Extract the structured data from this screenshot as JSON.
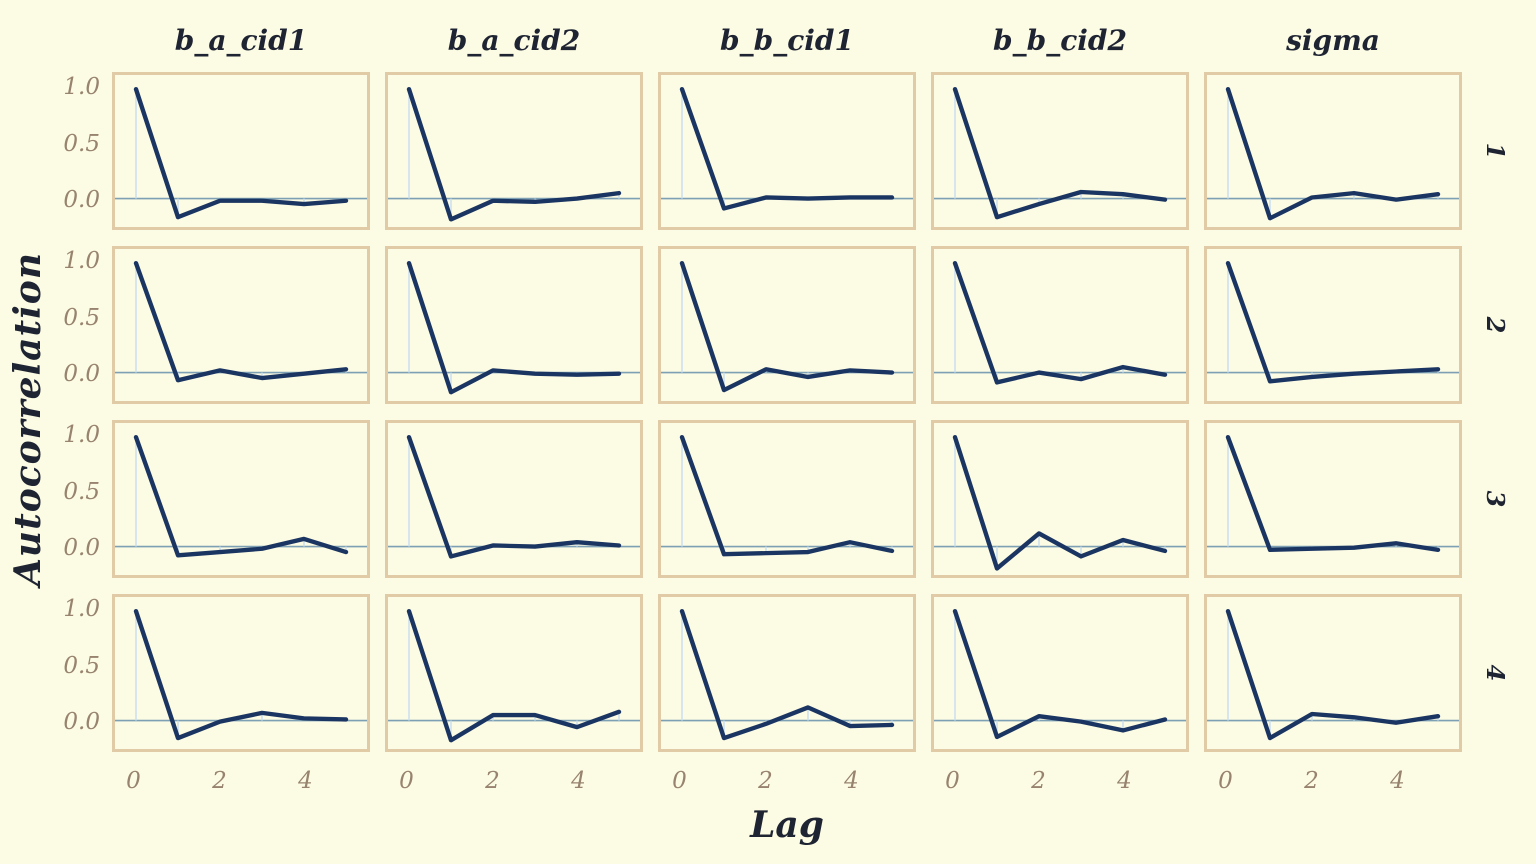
{
  "figure": {
    "ylabel": "Autocorrelation",
    "xlabel": "Lag",
    "col_titles": [
      "b_a_cid1",
      "b_a_cid2",
      "b_b_cid1",
      "b_b_cid2",
      "sigma"
    ],
    "row_labels": [
      "1",
      "2",
      "3",
      "4"
    ],
    "ytick_labels": [
      "1.0",
      "0.5",
      "0.0"
    ],
    "xtick_labels": [
      "0",
      "2",
      "4"
    ],
    "colors": {
      "background": "#FCFBE3",
      "panel_border": "#E0CBA6",
      "acf_line": "#1B3562",
      "zero_line": "#7DA0B4",
      "stem": "#C9DFF0",
      "tick_label": "#97836E",
      "label_text": "#1F2433"
    }
  },
  "chart_data": {
    "type": "line",
    "title": "",
    "xlabel": "Lag",
    "ylabel": "Autocorrelation",
    "grid": false,
    "legend": "none",
    "columns": [
      "b_a_cid1",
      "b_a_cid2",
      "b_b_cid1",
      "b_b_cid2",
      "sigma"
    ],
    "rows": [
      "1",
      "2",
      "3",
      "4"
    ],
    "x": [
      0,
      1,
      2,
      3,
      4,
      5
    ],
    "xticks": [
      0,
      2,
      4
    ],
    "yticks": [
      1.0,
      0.5,
      0.0
    ],
    "xlim": [
      -0.5,
      5.5
    ],
    "ylim": [
      -0.26,
      1.13
    ],
    "panels": [
      {
        "row": "1",
        "column": "b_a_cid1",
        "values": [
          1.0,
          -0.17,
          -0.02,
          -0.02,
          -0.05,
          -0.02
        ]
      },
      {
        "row": "1",
        "column": "b_a_cid2",
        "values": [
          1.0,
          -0.19,
          -0.02,
          -0.03,
          0.0,
          0.05
        ]
      },
      {
        "row": "1",
        "column": "b_b_cid1",
        "values": [
          1.0,
          -0.09,
          0.01,
          0.0,
          0.01,
          0.01
        ]
      },
      {
        "row": "1",
        "column": "b_b_cid2",
        "values": [
          1.0,
          -0.17,
          -0.05,
          0.06,
          0.04,
          -0.01
        ]
      },
      {
        "row": "1",
        "column": "sigma",
        "values": [
          1.0,
          -0.18,
          0.01,
          0.05,
          -0.01,
          0.04
        ]
      },
      {
        "row": "2",
        "column": "b_a_cid1",
        "values": [
          1.0,
          -0.07,
          0.02,
          -0.05,
          -0.01,
          0.03
        ]
      },
      {
        "row": "2",
        "column": "b_a_cid2",
        "values": [
          1.0,
          -0.18,
          0.02,
          -0.01,
          -0.02,
          -0.01
        ]
      },
      {
        "row": "2",
        "column": "b_b_cid1",
        "values": [
          1.0,
          -0.16,
          0.03,
          -0.04,
          0.02,
          0.0
        ]
      },
      {
        "row": "2",
        "column": "b_b_cid2",
        "values": [
          1.0,
          -0.09,
          0.0,
          -0.06,
          0.05,
          -0.02
        ]
      },
      {
        "row": "2",
        "column": "sigma",
        "values": [
          1.0,
          -0.08,
          -0.04,
          -0.01,
          0.01,
          0.03
        ]
      },
      {
        "row": "3",
        "column": "b_a_cid1",
        "values": [
          1.0,
          -0.08,
          -0.05,
          -0.02,
          0.07,
          -0.05
        ]
      },
      {
        "row": "3",
        "column": "b_a_cid2",
        "values": [
          1.0,
          -0.09,
          0.01,
          0.0,
          0.04,
          0.01
        ]
      },
      {
        "row": "3",
        "column": "b_b_cid1",
        "values": [
          1.0,
          -0.07,
          -0.06,
          -0.05,
          0.04,
          -0.04
        ]
      },
      {
        "row": "3",
        "column": "b_b_cid2",
        "values": [
          1.0,
          -0.2,
          0.12,
          -0.09,
          0.06,
          -0.04
        ]
      },
      {
        "row": "3",
        "column": "sigma",
        "values": [
          1.0,
          -0.03,
          -0.02,
          -0.01,
          0.03,
          -0.03
        ]
      },
      {
        "row": "4",
        "column": "b_a_cid1",
        "values": [
          1.0,
          -0.16,
          -0.01,
          0.07,
          0.02,
          0.01
        ]
      },
      {
        "row": "4",
        "column": "b_a_cid2",
        "values": [
          1.0,
          -0.18,
          0.05,
          0.05,
          -0.06,
          0.08
        ]
      },
      {
        "row": "4",
        "column": "b_b_cid1",
        "values": [
          1.0,
          -0.16,
          -0.03,
          0.12,
          -0.05,
          -0.04
        ]
      },
      {
        "row": "4",
        "column": "b_b_cid2",
        "values": [
          1.0,
          -0.15,
          0.04,
          -0.01,
          -0.09,
          0.01
        ]
      },
      {
        "row": "4",
        "column": "sigma",
        "values": [
          1.0,
          -0.16,
          0.06,
          0.03,
          -0.02,
          0.04
        ]
      }
    ]
  }
}
